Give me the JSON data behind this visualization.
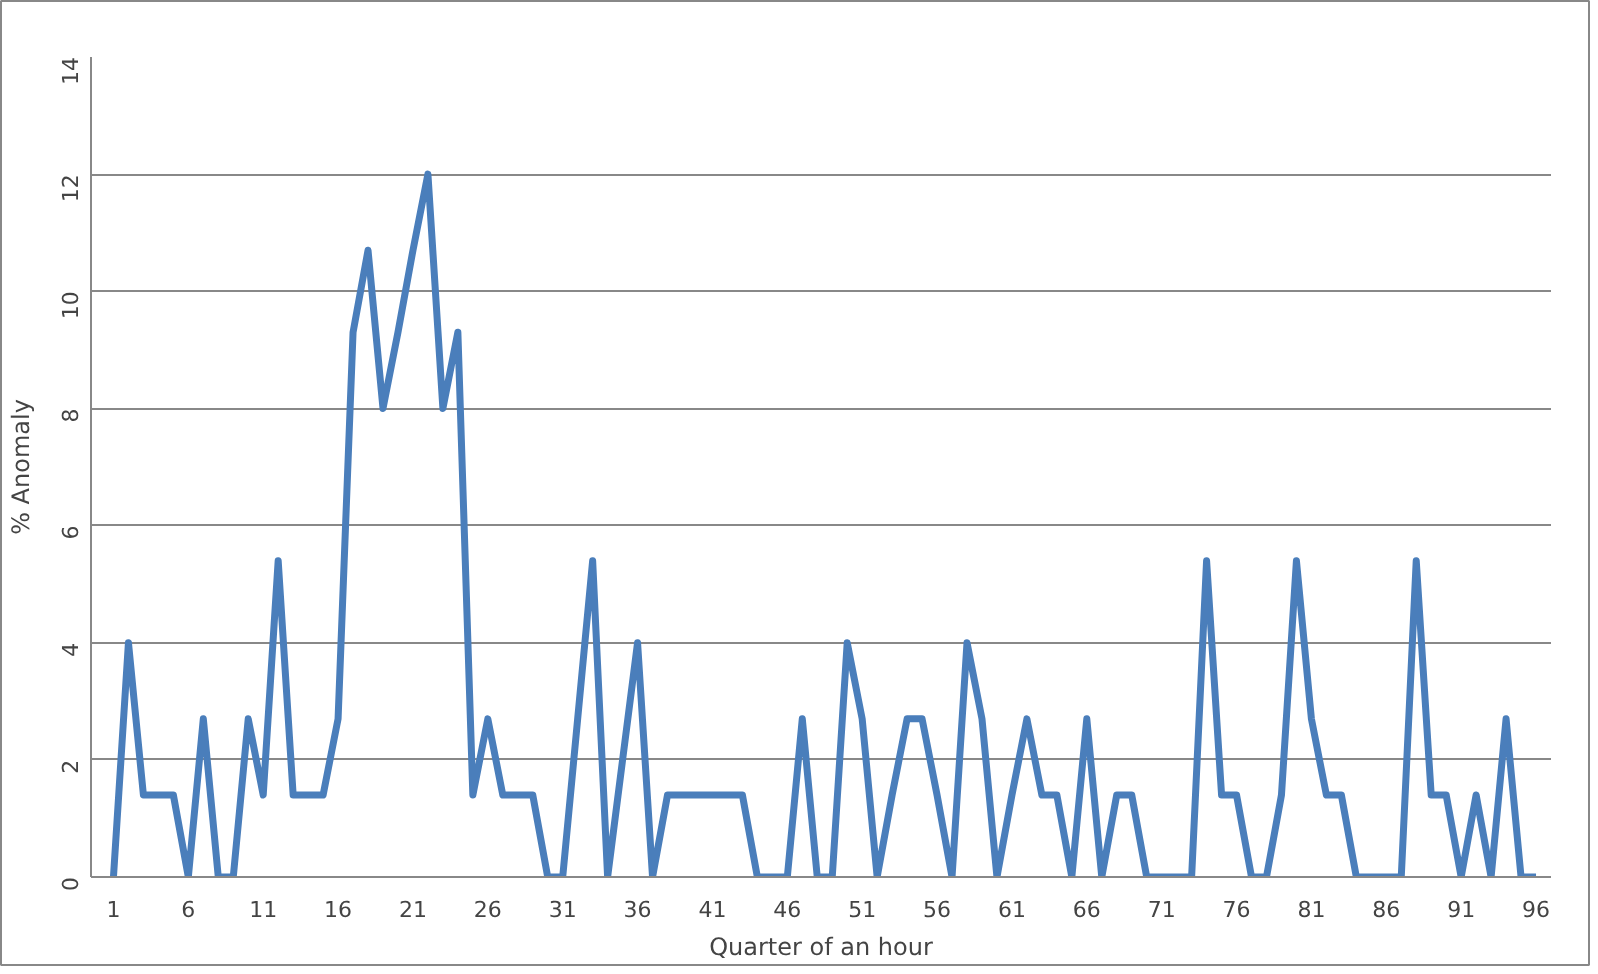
{
  "chart_data": {
    "type": "line",
    "xlabel": "Quarter of an hour",
    "ylabel": "% Anomaly",
    "x": [
      1,
      2,
      3,
      4,
      5,
      6,
      7,
      8,
      9,
      10,
      11,
      12,
      13,
      14,
      15,
      16,
      17,
      18,
      19,
      20,
      21,
      22,
      23,
      24,
      25,
      26,
      27,
      28,
      29,
      30,
      31,
      32,
      33,
      34,
      35,
      36,
      37,
      38,
      39,
      40,
      41,
      42,
      43,
      44,
      45,
      46,
      47,
      48,
      49,
      50,
      51,
      52,
      53,
      54,
      55,
      56,
      57,
      58,
      59,
      60,
      61,
      62,
      63,
      64,
      65,
      66,
      67,
      68,
      69,
      70,
      71,
      72,
      73,
      74,
      75,
      76,
      77,
      78,
      79,
      80,
      81,
      82,
      83,
      84,
      85,
      86,
      87,
      88,
      89,
      90,
      91,
      92,
      93,
      94,
      95,
      96
    ],
    "series": [
      {
        "color": "#4a7ebb",
        "values": [
          0,
          4,
          1.4,
          1.4,
          1.4,
          0,
          2.7,
          0,
          0,
          2.7,
          1.4,
          5.4,
          1.4,
          1.4,
          1.4,
          2.7,
          9.3,
          10.7,
          8,
          9.3,
          10.7,
          12,
          8,
          9.3,
          1.4,
          2.7,
          1.4,
          1.4,
          1.4,
          0,
          0,
          2.7,
          5.4,
          0,
          2,
          4,
          0,
          1.4,
          1.4,
          1.4,
          1.4,
          1.4,
          1.4,
          0,
          0,
          0,
          2.7,
          0,
          0,
          4,
          2.7,
          0,
          1.4,
          2.7,
          2.7,
          1.4,
          0,
          4,
          2.7,
          0,
          1.4,
          2.7,
          1.4,
          1.4,
          0,
          2.7,
          0,
          1.4,
          1.4,
          0,
          0,
          0,
          0,
          5.4,
          1.4,
          1.4,
          0,
          0,
          1.4,
          5.4,
          2.7,
          1.4,
          1.4,
          0,
          0,
          0,
          0,
          5.4,
          1.4,
          1.4,
          0,
          1.4,
          0,
          2.7,
          0,
          0
        ]
      }
    ],
    "xlim": [
      -0.5,
      97
    ],
    "xticks": [
      1,
      6,
      11,
      16,
      21,
      26,
      31,
      36,
      41,
      46,
      51,
      56,
      61,
      66,
      71,
      76,
      81,
      86,
      91,
      96
    ],
    "ylim": [
      0,
      14
    ],
    "yticks": [
      0,
      2,
      4,
      6,
      8,
      10,
      12,
      14
    ],
    "grid": "y",
    "line_style": "solid"
  }
}
